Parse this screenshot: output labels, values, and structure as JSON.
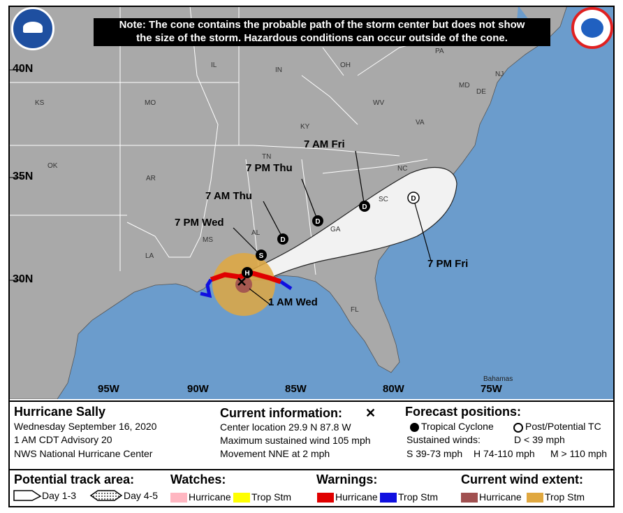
{
  "note": {
    "line1": "Note: The cone contains the probable path of the storm center but does not show",
    "line2": "the size of the storm. Hazardous conditions can occur outside of the cone."
  },
  "latitudes": [
    "40N",
    "35N",
    "30N"
  ],
  "longitudes": [
    "95W",
    "90W",
    "85W",
    "80W",
    "75W"
  ],
  "states": [
    "PA",
    "IL",
    "IN",
    "OH",
    "NJ",
    "MD",
    "KS",
    "MO",
    "WV",
    "DE",
    "VA",
    "KY",
    "TN",
    "NC",
    "OK",
    "AR",
    "SC",
    "MS",
    "AL",
    "GA",
    "LA",
    "FL"
  ],
  "places": {
    "bahamas": "Bahamas"
  },
  "forecast_labels": {
    "fri_am": "7 AM Fri",
    "thu_pm": "7 PM Thu",
    "thu_am": "7 AM Thu",
    "wed_pm": "7 PM Wed",
    "wed_am": "1 AM Wed",
    "fri_pm": "7 PM Fri"
  },
  "markers": {
    "d": "D",
    "s": "S",
    "h": "H"
  },
  "storm": {
    "name": "Hurricane Sally",
    "date": "Wednesday September 16, 2020",
    "advisory": "1 AM CDT Advisory 20",
    "center": "NWS National Hurricane Center"
  },
  "current": {
    "heading": "Current information:",
    "location": "Center location 29.9 N 87.8 W",
    "wind": "Maximum sustained wind 105 mph",
    "movement": "Movement NNE at 2 mph"
  },
  "forecast": {
    "heading": "Forecast positions:",
    "tropical": "Tropical Cyclone",
    "post": "Post/Potential TC",
    "sustained": "Sustained winds:",
    "d": "D < 39 mph",
    "s": "S 39-73 mph",
    "h": "H 74-110 mph",
    "m": "M > 110 mph"
  },
  "legend": {
    "track_heading": "Potential track area:",
    "day13": "Day 1-3",
    "day45": "Day 4-5",
    "watches_heading": "Watches:",
    "watch_hurricane": "Hurricane",
    "watch_ts": "Trop Stm",
    "warnings_heading": "Warnings:",
    "warn_hurricane": "Hurricane",
    "warn_ts": "Trop Stm",
    "wind_heading": "Current wind extent:",
    "wind_hurricane": "Hurricane",
    "wind_ts": "Trop Stm"
  },
  "colors": {
    "land": "#a9a9a9",
    "water": "#6b9ccc",
    "cone": "#f2f2f2",
    "hurricane_warning": "#e00000",
    "ts_warning": "#1010e0",
    "hurricane_wind": "#a05050",
    "ts_wind": "#e0a840",
    "hurricane_watch": "#ffb6c1",
    "ts_watch": "#ffff00"
  }
}
